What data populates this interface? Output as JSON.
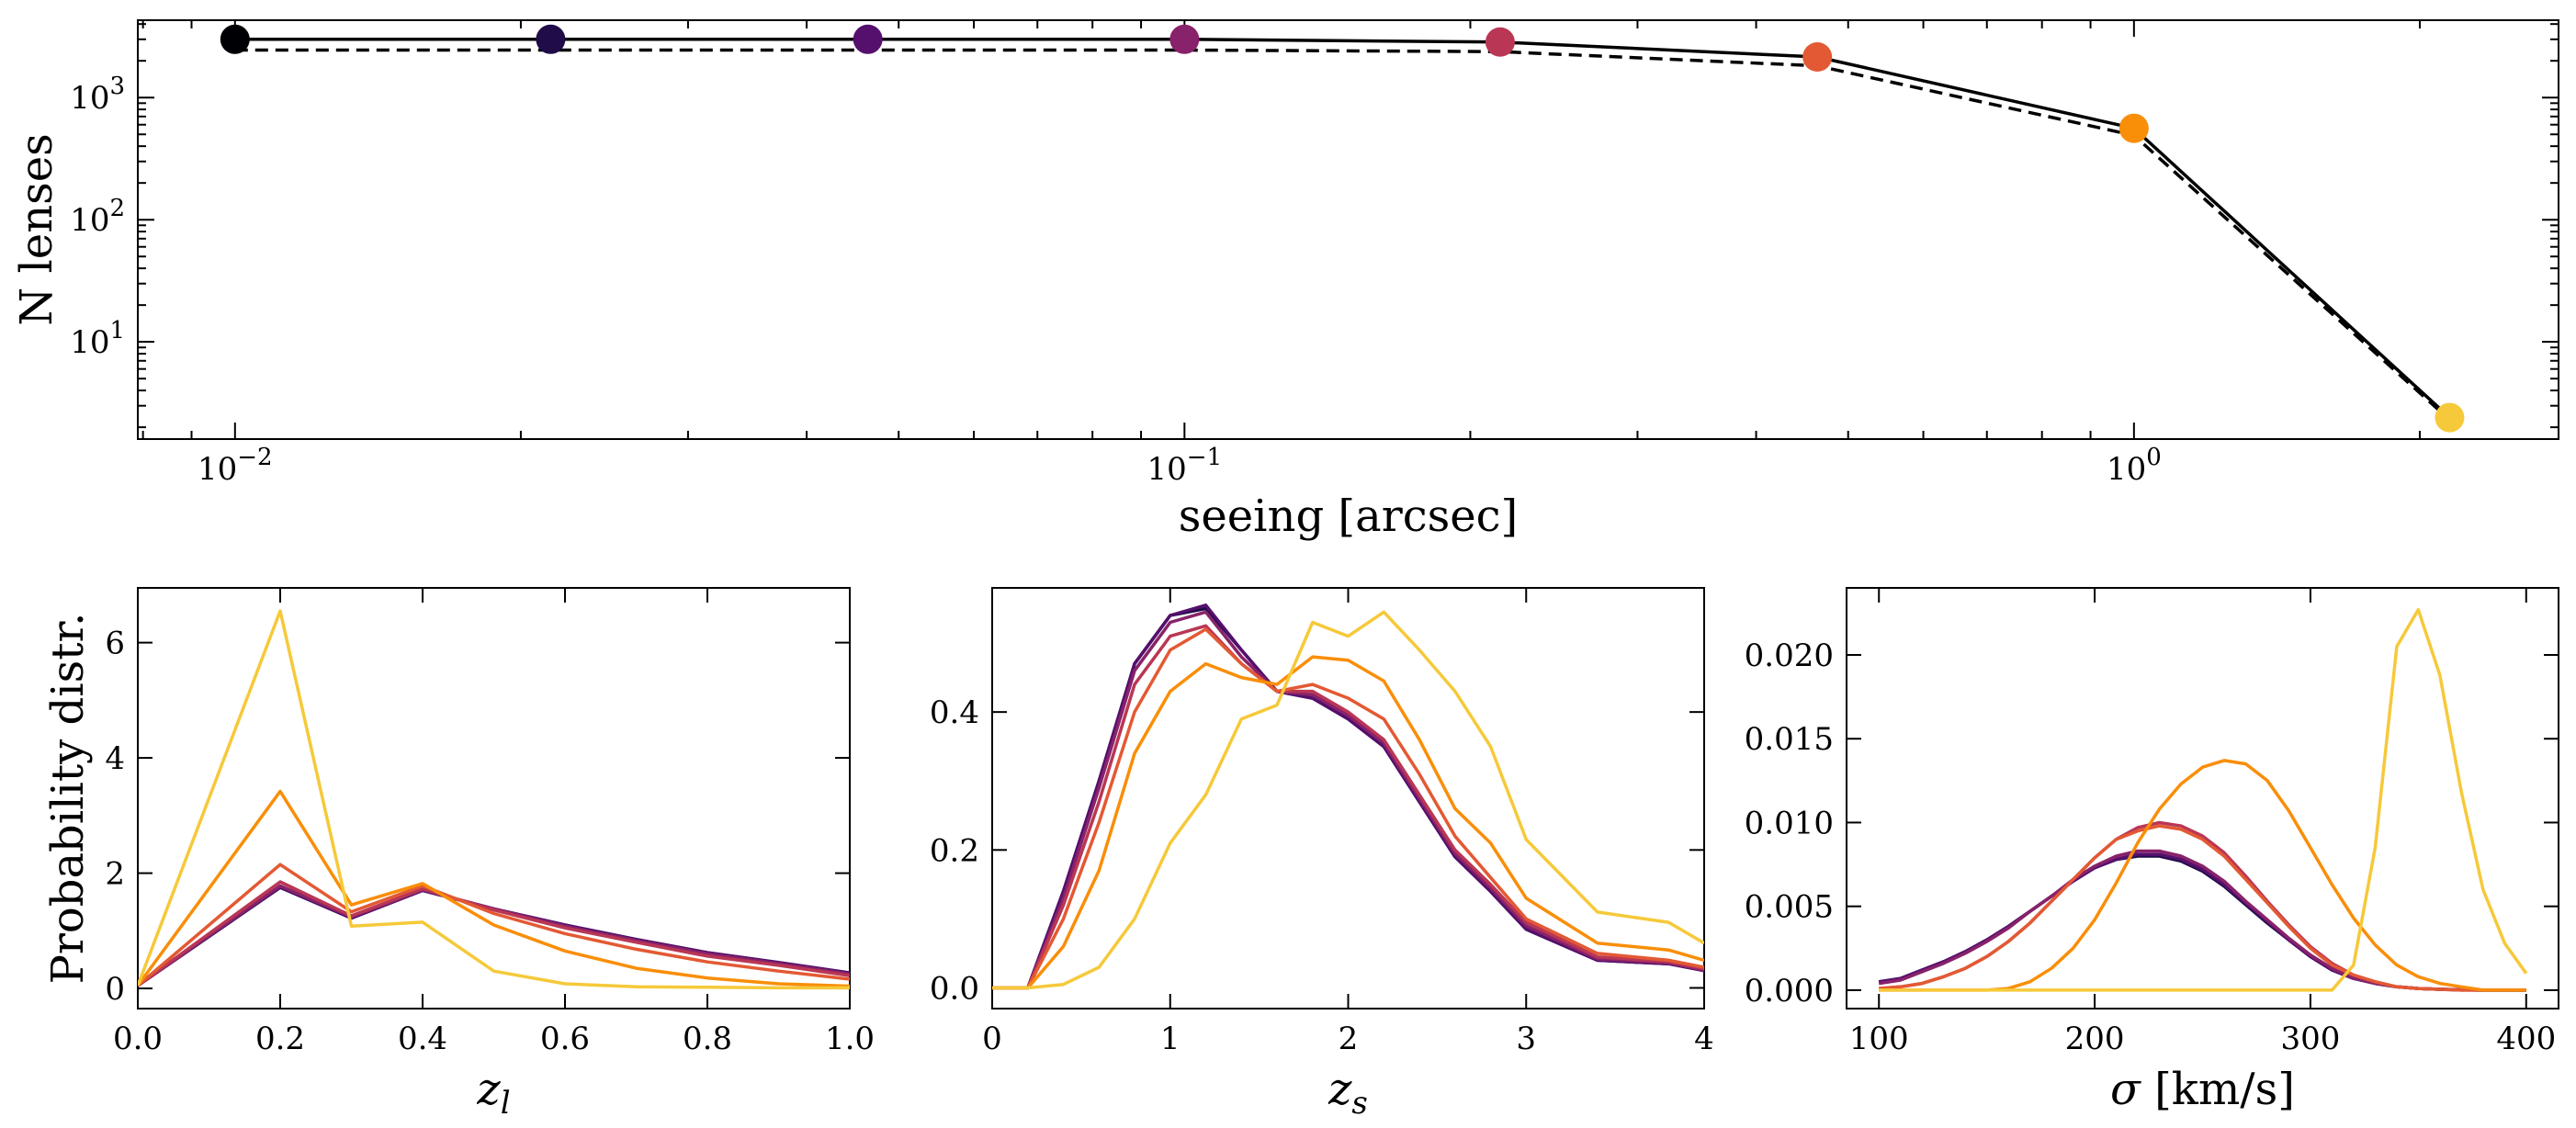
{
  "chart_data": [
    {
      "type": "line",
      "title": "",
      "xlabel": "seeing [arcsec]",
      "ylabel": "N lenses",
      "xscale": "log",
      "yscale": "log",
      "xlim": [
        0.0079,
        2.8
      ],
      "ylim": [
        1.6,
        4300
      ],
      "x_ticks": [
        {
          "value": 0.01,
          "base": "10",
          "exp": "−2"
        },
        {
          "value": 0.1,
          "base": "10",
          "exp": "−1"
        },
        {
          "value": 1,
          "base": "10",
          "exp": "0"
        }
      ],
      "y_ticks": [
        {
          "value": 10,
          "base": "10",
          "exp": "1"
        },
        {
          "value": 100,
          "base": "10",
          "exp": "2"
        },
        {
          "value": 1000,
          "base": "10",
          "exp": "3"
        }
      ],
      "series": [
        {
          "name": "solid",
          "style": "solid",
          "x": [
            0.01,
            0.0215,
            0.0464,
            0.1,
            0.215,
            0.464,
            1.0,
            2.15
          ],
          "values": [
            3000,
            3000,
            3000,
            3000,
            2850,
            2150,
            560,
            2.4
          ]
        },
        {
          "name": "dashed",
          "style": "dashed",
          "x": [
            0.01,
            0.0215,
            0.0464,
            0.1,
            0.215,
            0.464,
            1.0,
            2.15
          ],
          "values": [
            2450,
            2450,
            2450,
            2450,
            2380,
            1820,
            490,
            2.3
          ]
        }
      ],
      "points": {
        "x": [
          0.01,
          0.0215,
          0.0464,
          0.1,
          0.215,
          0.464,
          1.0,
          2.15
        ],
        "values": [
          3000,
          3000,
          3000,
          3000,
          2850,
          2150,
          560,
          2.4
        ],
        "colors": [
          "#000004",
          "#1f0c48",
          "#550f6d",
          "#88226a",
          "#ba3655",
          "#e35933",
          "#f98e09",
          "#f6c93a"
        ]
      }
    },
    {
      "type": "line",
      "xlabel": "z_l",
      "xlabel_main": "z",
      "xlabel_sub": "l",
      "ylabel": "Probability distr.",
      "xlim": [
        0,
        1.0
      ],
      "ylim": [
        -0.35,
        6.95
      ],
      "x_ticks": [
        "0.0",
        "0.2",
        "0.4",
        "0.6",
        "0.8",
        "1.0"
      ],
      "y_ticks": [
        "0",
        "2",
        "4",
        "6"
      ],
      "x": [
        0,
        0.2,
        0.3,
        0.4,
        0.5,
        0.6,
        0.7,
        0.8,
        0.9,
        1.0
      ],
      "series": [
        {
          "color": "#1f0c48",
          "values": [
            0.05,
            1.75,
            1.22,
            1.7,
            1.38,
            1.1,
            0.85,
            0.62,
            0.45,
            0.27
          ]
        },
        {
          "color": "#550f6d",
          "values": [
            0.05,
            1.76,
            1.22,
            1.7,
            1.38,
            1.1,
            0.85,
            0.62,
            0.45,
            0.27
          ]
        },
        {
          "color": "#88226a",
          "values": [
            0.05,
            1.78,
            1.24,
            1.71,
            1.38,
            1.08,
            0.83,
            0.6,
            0.43,
            0.25
          ]
        },
        {
          "color": "#ba3655",
          "values": [
            0.05,
            1.85,
            1.26,
            1.73,
            1.36,
            1.05,
            0.8,
            0.56,
            0.4,
            0.22
          ]
        },
        {
          "color": "#e35933",
          "values": [
            0.05,
            2.15,
            1.33,
            1.78,
            1.3,
            0.95,
            0.68,
            0.46,
            0.3,
            0.16
          ]
        },
        {
          "color": "#f98e09",
          "values": [
            0.05,
            3.42,
            1.45,
            1.82,
            1.1,
            0.65,
            0.35,
            0.18,
            0.08,
            0.04
          ]
        },
        {
          "color": "#f6c93a",
          "values": [
            0.05,
            6.55,
            1.08,
            1.15,
            0.3,
            0.08,
            0.03,
            0.02,
            0.01,
            0.01
          ]
        }
      ]
    },
    {
      "type": "line",
      "xlabel": "z_s",
      "xlabel_main": "z",
      "xlabel_sub": "s",
      "ylabel": "",
      "xlim": [
        0,
        4
      ],
      "ylim": [
        -0.03,
        0.58
      ],
      "x_ticks": [
        "0",
        "1",
        "2",
        "3",
        "4"
      ],
      "y_ticks": [
        "0.0",
        "0.2",
        "0.4"
      ],
      "x": [
        0,
        0.2,
        0.4,
        0.6,
        0.8,
        1.0,
        1.2,
        1.4,
        1.6,
        1.8,
        2.0,
        2.2,
        2.4,
        2.6,
        2.8,
        3.0,
        3.4,
        3.8,
        4.0
      ],
      "series": [
        {
          "color": "#1f0c48",
          "values": [
            0,
            0,
            0.14,
            0.3,
            0.47,
            0.54,
            0.55,
            0.49,
            0.43,
            0.42,
            0.39,
            0.35,
            0.27,
            0.19,
            0.14,
            0.085,
            0.04,
            0.035,
            0.025
          ]
        },
        {
          "color": "#550f6d",
          "values": [
            0,
            0,
            0.14,
            0.3,
            0.47,
            0.54,
            0.555,
            0.49,
            0.43,
            0.42,
            0.39,
            0.35,
            0.27,
            0.19,
            0.14,
            0.085,
            0.04,
            0.035,
            0.025
          ]
        },
        {
          "color": "#88226a",
          "values": [
            0,
            0,
            0.13,
            0.29,
            0.46,
            0.53,
            0.545,
            0.48,
            0.43,
            0.425,
            0.395,
            0.355,
            0.275,
            0.195,
            0.145,
            0.09,
            0.042,
            0.036,
            0.026
          ]
        },
        {
          "color": "#ba3655",
          "values": [
            0,
            0,
            0.12,
            0.27,
            0.44,
            0.51,
            0.525,
            0.47,
            0.43,
            0.43,
            0.4,
            0.36,
            0.28,
            0.2,
            0.15,
            0.095,
            0.045,
            0.038,
            0.028
          ]
        },
        {
          "color": "#e35933",
          "values": [
            0,
            0,
            0.1,
            0.24,
            0.4,
            0.49,
            0.52,
            0.47,
            0.43,
            0.44,
            0.42,
            0.39,
            0.31,
            0.22,
            0.16,
            0.1,
            0.05,
            0.04,
            0.03
          ]
        },
        {
          "color": "#f98e09",
          "values": [
            0,
            0,
            0.06,
            0.17,
            0.34,
            0.43,
            0.47,
            0.45,
            0.44,
            0.48,
            0.475,
            0.445,
            0.36,
            0.26,
            0.21,
            0.13,
            0.065,
            0.055,
            0.04
          ]
        },
        {
          "color": "#f6c93a",
          "values": [
            0,
            0,
            0.005,
            0.03,
            0.1,
            0.21,
            0.28,
            0.39,
            0.41,
            0.53,
            0.51,
            0.545,
            0.49,
            0.43,
            0.35,
            0.215,
            0.11,
            0.095,
            0.065
          ]
        }
      ]
    },
    {
      "type": "line",
      "xlabel": "σ [km/s]",
      "xlabel_sym": "σ",
      "xlabel_rest": " [km/s]",
      "ylabel": "",
      "xlim": [
        85,
        415
      ],
      "ylim": [
        -0.0011,
        0.024
      ],
      "x_ticks": [
        "100",
        "200",
        "300",
        "400"
      ],
      "y_ticks": [
        "0.000",
        "0.005",
        "0.010",
        "0.015",
        "0.020"
      ],
      "x": [
        100,
        110,
        120,
        130,
        140,
        150,
        160,
        170,
        180,
        190,
        200,
        210,
        220,
        230,
        240,
        250,
        260,
        270,
        280,
        290,
        300,
        310,
        320,
        330,
        340,
        350,
        360,
        370,
        380,
        390,
        400
      ],
      "series": [
        {
          "color": "#1f0c48",
          "values": [
            0.0005,
            0.0007,
            0.0012,
            0.0017,
            0.0023,
            0.003,
            0.0038,
            0.0047,
            0.0056,
            0.0065,
            0.0073,
            0.0078,
            0.008,
            0.008,
            0.0077,
            0.0071,
            0.0062,
            0.0051,
            0.004,
            0.003,
            0.002,
            0.0012,
            0.0007,
            0.0004,
            0.0002,
            0.0001,
            5e-05,
            2e-05,
            0,
            0,
            0
          ]
        },
        {
          "color": "#550f6d",
          "values": [
            0.0005,
            0.0007,
            0.0012,
            0.0017,
            0.0023,
            0.003,
            0.0038,
            0.0047,
            0.0056,
            0.0065,
            0.0073,
            0.0078,
            0.0081,
            0.0081,
            0.0078,
            0.0072,
            0.0063,
            0.0052,
            0.0041,
            0.003,
            0.002,
            0.0012,
            0.0007,
            0.0004,
            0.0002,
            0.0001,
            5e-05,
            2e-05,
            0,
            0,
            0
          ]
        },
        {
          "color": "#88226a",
          "values": [
            0.0004,
            0.0006,
            0.0011,
            0.0016,
            0.0022,
            0.0029,
            0.0037,
            0.0047,
            0.0056,
            0.0066,
            0.0074,
            0.008,
            0.0083,
            0.0083,
            0.008,
            0.0074,
            0.0065,
            0.0053,
            0.0042,
            0.0031,
            0.0021,
            0.0013,
            0.0007,
            0.0004,
            0.0002,
            0.0001,
            5e-05,
            2e-05,
            0,
            0,
            0
          ]
        },
        {
          "color": "#ba3655",
          "values": [
            0.0001,
            0.0002,
            0.0004,
            0.0008,
            0.0013,
            0.002,
            0.0029,
            0.004,
            0.0053,
            0.0066,
            0.0079,
            0.009,
            0.0097,
            0.01,
            0.0098,
            0.0092,
            0.0082,
            0.0068,
            0.0053,
            0.0039,
            0.0026,
            0.0016,
            0.0009,
            0.0005,
            0.0002,
            0.0001,
            5e-05,
            0,
            0,
            0,
            0
          ]
        },
        {
          "color": "#e35933",
          "values": [
            0.0001,
            0.0002,
            0.0004,
            0.0008,
            0.0013,
            0.002,
            0.0029,
            0.004,
            0.0053,
            0.0066,
            0.0079,
            0.009,
            0.0095,
            0.0098,
            0.0096,
            0.009,
            0.008,
            0.0066,
            0.0052,
            0.0038,
            0.0025,
            0.0015,
            0.0009,
            0.0005,
            0.0002,
            0.0001,
            5e-05,
            0,
            0,
            0,
            0
          ]
        },
        {
          "color": "#f98e09",
          "values": [
            0,
            0,
            0,
            0,
            0,
            0,
            0.0001,
            0.0005,
            0.0013,
            0.0025,
            0.0042,
            0.0064,
            0.0088,
            0.0108,
            0.0123,
            0.0133,
            0.0137,
            0.0135,
            0.0125,
            0.0107,
            0.0085,
            0.0063,
            0.0043,
            0.0027,
            0.0015,
            0.0008,
            0.0004,
            0.0002,
            0,
            0,
            0
          ]
        },
        {
          "color": "#f6c93a",
          "values": [
            0,
            0,
            0,
            0,
            0,
            0,
            0,
            0,
            0,
            0,
            0,
            0,
            0,
            0,
            0,
            0,
            0,
            0,
            0,
            0,
            0,
            0,
            0.0015,
            0.0085,
            0.0205,
            0.0227,
            0.0188,
            0.0118,
            0.006,
            0.0028,
            0.001
          ]
        }
      ]
    }
  ]
}
